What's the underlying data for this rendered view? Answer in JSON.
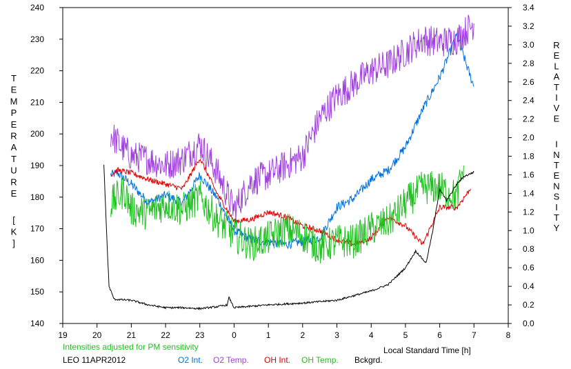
{
  "chart_data": {
    "type": "line",
    "title": "",
    "xlabel": "Local Standard Time [h]",
    "ylabel_left": "TEMPERATURE [K]",
    "ylabel_right": "RELATIVE INTENSITY",
    "x_ticks": [
      19,
      20,
      21,
      22,
      23,
      0,
      1,
      2,
      3,
      4,
      5,
      6,
      7,
      8
    ],
    "xlim": [
      19,
      32
    ],
    "ylim_left": [
      140,
      240
    ],
    "ylim_right": [
      0.0,
      3.4
    ],
    "y_ticks_left": [
      140,
      150,
      160,
      170,
      180,
      190,
      200,
      210,
      220,
      230,
      240
    ],
    "y_ticks_right": [
      "0.0",
      "0.2",
      "0.4",
      "0.6",
      "0.8",
      "1.0",
      "1.2",
      "1.4",
      "1.6",
      "1.8",
      "2.0",
      "2.2",
      "2.4",
      "2.6",
      "2.8",
      "3.0",
      "3.2",
      "3.4"
    ],
    "grid": false,
    "note": "Intensities adjusted for PM sensitivity",
    "station": "LEO 11APR2012",
    "legend_position": "bottom",
    "series": [
      {
        "name": "O2 Int.",
        "axis": "right",
        "color": "#0070e0",
        "noise": 0.05,
        "x": [
          20.4,
          20.6,
          21.0,
          21.5,
          22.0,
          22.5,
          23.0,
          23.5,
          24.0,
          24.5,
          25.0,
          25.5,
          26.0,
          26.5,
          27.0,
          27.5,
          28.0,
          28.5,
          29.0,
          29.5,
          30.0,
          30.5,
          30.9,
          31.0
        ],
        "y": [
          1.6,
          1.62,
          1.5,
          1.3,
          1.38,
          1.3,
          1.6,
          1.35,
          1.0,
          0.9,
          0.88,
          0.85,
          0.88,
          0.92,
          1.25,
          1.35,
          1.55,
          1.65,
          1.9,
          2.3,
          2.65,
          3.1,
          2.65,
          2.55
        ]
      },
      {
        "name": "O2 Temp.",
        "axis": "left",
        "color": "#a040e0",
        "noise": 5.0,
        "x": [
          20.4,
          20.7,
          21.0,
          21.5,
          22.0,
          22.5,
          23.0,
          23.5,
          24.0,
          24.5,
          25.0,
          25.5,
          26.0,
          26.5,
          27.0,
          27.5,
          28.0,
          28.5,
          29.0,
          29.5,
          30.0,
          30.5,
          31.0
        ],
        "y": [
          200,
          196,
          193,
          192,
          190,
          192,
          197,
          188,
          176,
          185,
          187,
          190,
          193,
          205,
          212,
          216,
          220,
          222,
          226,
          230,
          229,
          230,
          235
        ]
      },
      {
        "name": "OH Int.",
        "axis": "right",
        "color": "#e00000",
        "noise": 0.03,
        "x": [
          20.4,
          20.6,
          21.0,
          21.5,
          22.0,
          22.5,
          23.0,
          23.5,
          24.0,
          24.5,
          25.0,
          25.5,
          26.0,
          26.5,
          27.0,
          27.5,
          28.0,
          28.5,
          29.0,
          29.5,
          30.0,
          30.5,
          30.9
        ],
        "y": [
          1.6,
          1.65,
          1.62,
          1.55,
          1.5,
          1.45,
          1.78,
          1.4,
          1.1,
          1.12,
          1.2,
          1.15,
          1.05,
          1.0,
          0.9,
          0.85,
          0.92,
          1.15,
          1.05,
          0.85,
          1.25,
          1.25,
          1.45
        ]
      },
      {
        "name": "OH Temp.",
        "axis": "left",
        "color": "#20c020",
        "noise": 5.5,
        "x": [
          20.4,
          20.8,
          21.0,
          21.5,
          22.0,
          22.5,
          23.0,
          23.5,
          24.0,
          24.5,
          25.0,
          25.5,
          26.0,
          26.5,
          27.0,
          27.5,
          28.0,
          28.5,
          29.0,
          29.5,
          30.0,
          30.5,
          30.7
        ],
        "y": [
          178,
          182,
          176,
          175,
          178,
          176,
          180,
          173,
          168,
          165,
          167,
          170,
          168,
          164,
          166,
          166,
          170,
          172,
          178,
          183,
          183,
          180,
          190
        ]
      },
      {
        "name": "Bckgrd.",
        "axis": "right",
        "color": "#000000",
        "noise": 0.01,
        "x": [
          20.2,
          20.3,
          20.35,
          20.5,
          21.0,
          21.5,
          22.0,
          22.5,
          23.0,
          23.5,
          23.8,
          23.85,
          24.0,
          25.0,
          26.0,
          27.0,
          27.5,
          28.0,
          28.5,
          29.0,
          29.3,
          29.6,
          29.8,
          30.0,
          30.2,
          30.5,
          30.7,
          31.0
        ],
        "y": [
          1.7,
          0.8,
          0.4,
          0.26,
          0.25,
          0.2,
          0.17,
          0.17,
          0.16,
          0.18,
          0.2,
          0.28,
          0.17,
          0.2,
          0.22,
          0.25,
          0.3,
          0.35,
          0.42,
          0.6,
          0.78,
          0.65,
          1.0,
          1.45,
          1.32,
          1.5,
          1.58,
          1.63
        ]
      }
    ]
  }
}
